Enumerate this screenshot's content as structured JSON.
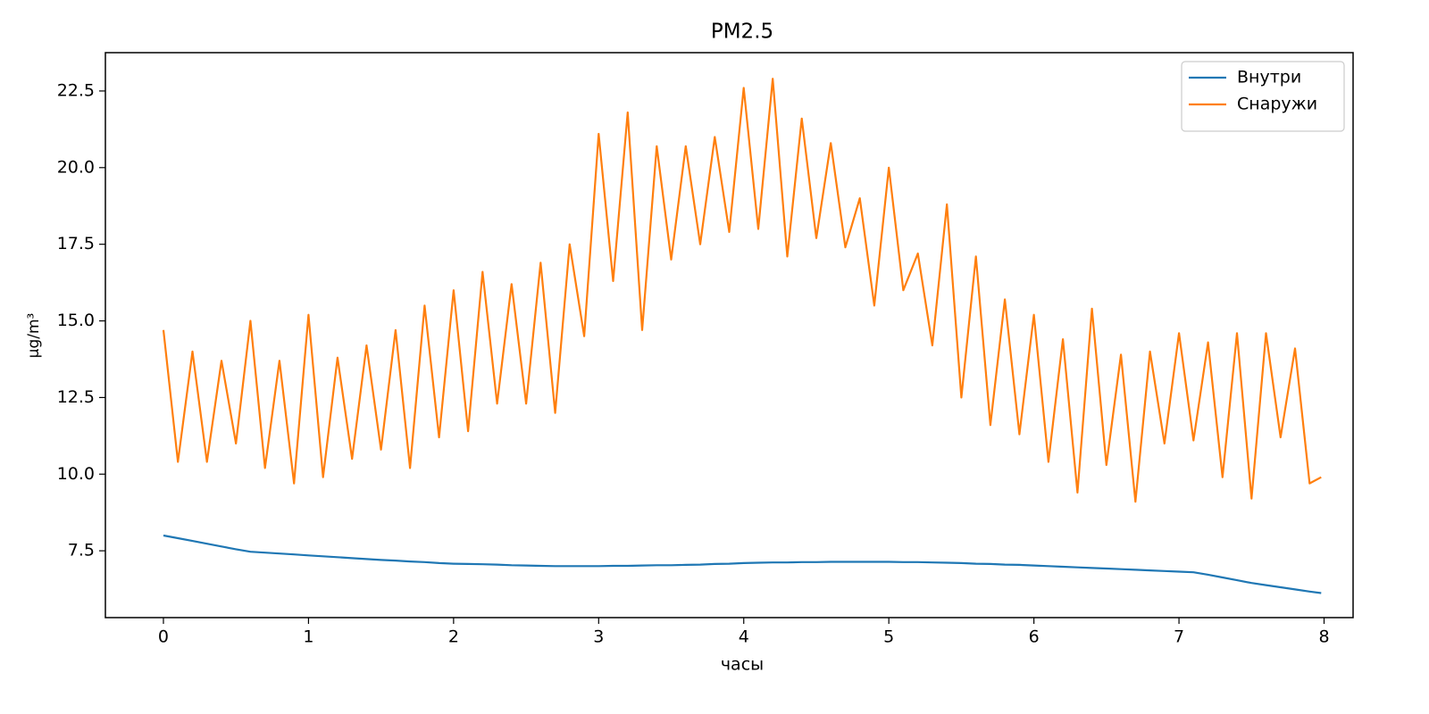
{
  "chart_data": {
    "type": "line",
    "title": "PM2.5",
    "x_label": "часы",
    "y_label": "µg/m³",
    "x": [
      0,
      0.1,
      0.2,
      0.3,
      0.4,
      0.5,
      0.6,
      0.7,
      0.8,
      0.9,
      1.0,
      1.1,
      1.2,
      1.3,
      1.4,
      1.5,
      1.6,
      1.7,
      1.8,
      1.9,
      2.0,
      2.1,
      2.2,
      2.3,
      2.4,
      2.5,
      2.6,
      2.7,
      2.8,
      2.9,
      3.0,
      3.1,
      3.2,
      3.3,
      3.4,
      3.5,
      3.6,
      3.7,
      3.8,
      3.9,
      4.0,
      4.1,
      4.2,
      4.3,
      4.4,
      4.5,
      4.6,
      4.7,
      4.8,
      4.9,
      5.0,
      5.1,
      5.2,
      5.3,
      5.4,
      5.5,
      5.6,
      5.7,
      5.8,
      5.9,
      6.0,
      6.1,
      6.2,
      6.3,
      6.4,
      6.5,
      6.6,
      6.7,
      6.8,
      6.9,
      7.0,
      7.1,
      7.2,
      7.3,
      7.4,
      7.5,
      7.6,
      7.7,
      7.8,
      7.9,
      7.98
    ],
    "series": [
      {
        "name": "Внутри",
        "color": "#1f77b4",
        "values": [
          8.0,
          7.91,
          7.82,
          7.73,
          7.64,
          7.55,
          7.47,
          7.44,
          7.41,
          7.38,
          7.35,
          7.32,
          7.29,
          7.26,
          7.23,
          7.2,
          7.18,
          7.15,
          7.13,
          7.1,
          7.08,
          7.07,
          7.06,
          7.05,
          7.03,
          7.02,
          7.01,
          7.0,
          7.0,
          7.0,
          7.0,
          7.01,
          7.01,
          7.02,
          7.03,
          7.03,
          7.04,
          7.05,
          7.07,
          7.08,
          7.1,
          7.11,
          7.12,
          7.12,
          7.13,
          7.13,
          7.14,
          7.14,
          7.14,
          7.14,
          7.14,
          7.13,
          7.13,
          7.12,
          7.11,
          7.1,
          7.08,
          7.07,
          7.05,
          7.04,
          7.02,
          7.0,
          6.98,
          6.96,
          6.94,
          6.92,
          6.9,
          6.88,
          6.86,
          6.84,
          6.82,
          6.8,
          6.72,
          6.63,
          6.54,
          6.45,
          6.38,
          6.31,
          6.24,
          6.17,
          6.12
        ]
      },
      {
        "name": "Снаружи",
        "color": "#ff7f0e",
        "values": [
          14.7,
          10.4,
          14.0,
          10.4,
          13.7,
          11.0,
          15.0,
          10.2,
          13.7,
          9.7,
          15.2,
          9.9,
          13.8,
          10.5,
          14.2,
          10.8,
          14.7,
          10.2,
          15.5,
          11.2,
          16.0,
          11.4,
          16.6,
          12.3,
          16.2,
          12.3,
          16.9,
          12.0,
          17.5,
          14.5,
          21.1,
          16.3,
          21.8,
          14.7,
          20.7,
          17.0,
          20.7,
          17.5,
          21.0,
          17.9,
          22.6,
          18.0,
          22.9,
          17.1,
          21.6,
          17.7,
          20.8,
          17.4,
          19.0,
          15.5,
          20.0,
          16.0,
          17.2,
          14.2,
          18.8,
          12.5,
          17.1,
          11.6,
          15.7,
          11.3,
          15.2,
          10.4,
          14.4,
          9.4,
          15.4,
          10.3,
          13.9,
          9.1,
          14.0,
          11.0,
          14.6,
          11.1,
          14.3,
          9.9,
          14.6,
          9.2,
          14.6,
          11.2,
          14.1,
          9.7,
          9.9
        ]
      }
    ],
    "xlim": [
      -0.4,
      8.2
    ],
    "ylim": [
      5.32,
      23.75
    ],
    "xticks": [
      0,
      1,
      2,
      3,
      4,
      5,
      6,
      7,
      8
    ],
    "yticks": [
      7.5,
      {
        "value": 10,
        "label": "10.0"
      },
      12.5,
      {
        "value": 15,
        "label": "15.0"
      },
      17.5,
      {
        "value": 20,
        "label": "20.0"
      },
      22.5
    ],
    "legend": "upper right"
  }
}
